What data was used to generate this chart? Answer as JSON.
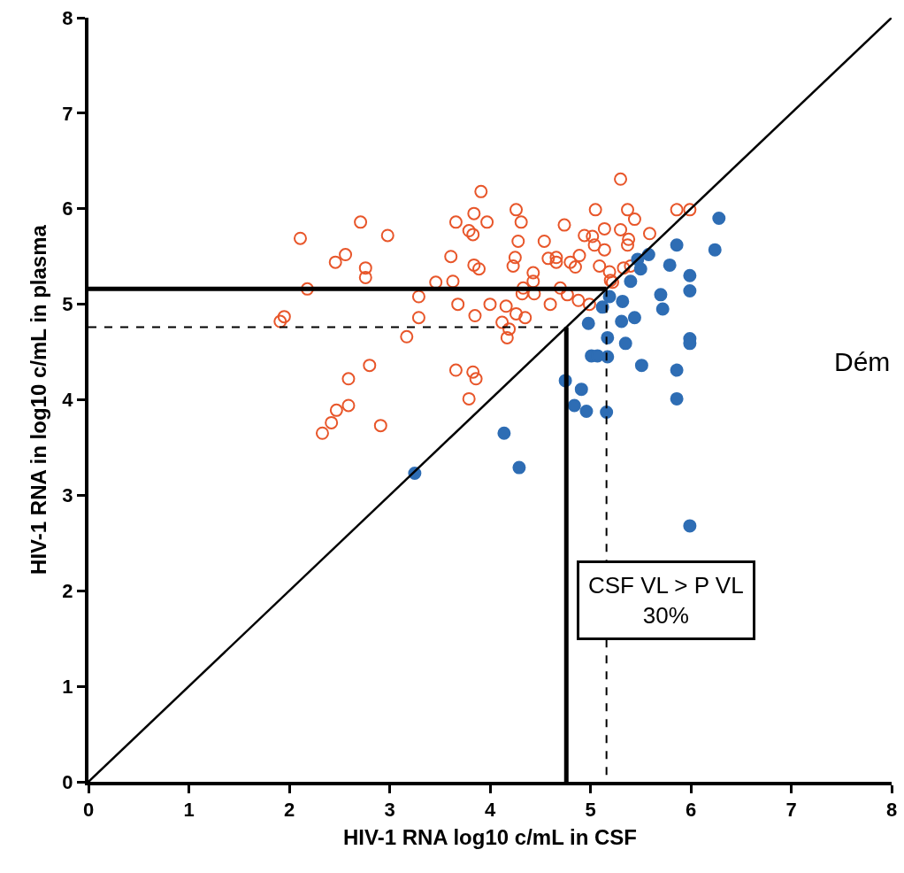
{
  "chart_data": {
    "type": "scatter",
    "xlabel": "HIV-1 RNA log10 c/mL in CSF",
    "ylabel": "HIV-1 RNA in log10 c/mL in plasma",
    "xlim": [
      0,
      8
    ],
    "ylim": [
      0,
      8
    ],
    "xticks": [
      0,
      1,
      2,
      3,
      4,
      5,
      6,
      7,
      8
    ],
    "yticks": [
      0,
      1,
      2,
      3,
      4,
      5,
      6,
      7,
      8
    ],
    "annotations": [
      "CSF VL > P VL\n30%",
      "Dém"
    ],
    "series": [
      {
        "color": "#e8562a",
        "marker": "circle-open",
        "x": [
          2.11,
          2.71,
          2.98,
          2.46,
          2.56,
          2.76,
          2.76,
          2.18,
          1.91,
          1.95,
          3.29,
          3.29,
          3.17,
          3.46,
          3.61,
          3.63,
          3.66,
          3.68,
          3.79,
          3.83,
          3.84,
          3.91,
          3.97,
          3.84,
          3.89,
          3.85,
          4.0,
          4.16,
          4.12,
          4.19,
          4.17,
          4.26,
          4.31,
          4.28,
          4.25,
          4.23,
          4.26,
          4.35,
          4.32,
          4.33,
          4.43,
          4.43,
          4.44,
          4.54,
          4.58,
          4.66,
          4.66,
          4.6,
          4.7,
          4.74,
          4.77,
          4.8,
          4.85,
          4.89,
          4.88,
          4.94,
          5.02,
          5.04,
          5.14,
          5.05,
          5.14,
          5.09,
          5.19,
          5.2,
          4.99,
          5.3,
          5.3,
          5.37,
          5.38,
          5.37,
          5.33,
          2.8,
          2.59,
          2.59,
          2.47,
          2.42,
          2.33,
          2.91,
          3.66,
          3.83,
          3.86,
          3.79,
          5.86,
          5.99,
          5.44,
          5.59,
          5.4,
          5.22
        ],
        "values": [
          5.69,
          5.86,
          5.72,
          5.44,
          5.52,
          5.38,
          5.28,
          5.16,
          4.82,
          4.87,
          5.08,
          4.86,
          4.66,
          5.23,
          5.5,
          5.24,
          5.86,
          5.0,
          5.77,
          5.73,
          5.95,
          6.18,
          5.86,
          5.41,
          5.37,
          4.88,
          5.0,
          4.98,
          4.81,
          4.74,
          4.65,
          5.99,
          5.86,
          5.66,
          5.49,
          5.4,
          4.9,
          4.86,
          5.11,
          5.17,
          5.33,
          5.24,
          5.11,
          5.66,
          5.48,
          5.49,
          5.44,
          5.0,
          5.17,
          5.83,
          5.1,
          5.44,
          5.39,
          5.51,
          5.04,
          5.72,
          5.71,
          5.62,
          5.57,
          5.99,
          5.79,
          5.4,
          5.34,
          5.25,
          5.0,
          6.31,
          5.78,
          5.99,
          5.68,
          5.62,
          5.38,
          4.36,
          4.22,
          3.94,
          3.89,
          3.76,
          3.65,
          3.73,
          4.31,
          4.29,
          4.22,
          4.01,
          5.99,
          5.99,
          5.89,
          5.74,
          5.4,
          5.23
        ]
      },
      {
        "color": "#2e6db4",
        "marker": "circle",
        "x": [
          6.28,
          6.24,
          5.86,
          5.58,
          5.47,
          5.5,
          5.79,
          5.99,
          5.99,
          5.4,
          5.19,
          5.32,
          5.12,
          5.7,
          5.72,
          4.98,
          5.31,
          5.44,
          5.17,
          5.35,
          5.99,
          5.99,
          5.01,
          5.07,
          5.17,
          5.51,
          5.86,
          4.75,
          4.91,
          4.84,
          4.96,
          5.16,
          5.86,
          5.99,
          4.14,
          4.29,
          3.25
        ],
        "values": [
          5.9,
          5.57,
          5.62,
          5.52,
          5.47,
          5.37,
          5.41,
          5.3,
          5.14,
          5.24,
          5.08,
          5.03,
          4.97,
          5.1,
          4.95,
          4.8,
          4.82,
          4.86,
          4.65,
          4.59,
          4.64,
          4.59,
          4.46,
          4.46,
          4.45,
          4.36,
          4.31,
          4.2,
          4.11,
          3.94,
          3.88,
          3.87,
          4.01,
          2.68,
          3.65,
          3.29,
          3.23
        ]
      },
      {
        "type": "line",
        "color": "#000000",
        "line_style": "solid",
        "x": [
          0,
          8
        ],
        "values": [
          0,
          8
        ]
      },
      {
        "type": "line",
        "color": "#000000",
        "line_style": "solid",
        "x": [
          0,
          5.16
        ],
        "values": [
          5.16,
          5.16
        ]
      },
      {
        "type": "line",
        "color": "#000000",
        "line_style": "dashed",
        "x": [
          5.16,
          5.16
        ],
        "values": [
          5.16,
          0
        ]
      },
      {
        "type": "line",
        "color": "#000000",
        "line_style": "dashed",
        "x": [
          0,
          4.76
        ],
        "values": [
          4.76,
          4.76
        ]
      },
      {
        "type": "line",
        "color": "#000000",
        "line_style": "solid",
        "x": [
          4.76,
          4.76
        ],
        "values": [
          4.76,
          0
        ]
      }
    ]
  }
}
